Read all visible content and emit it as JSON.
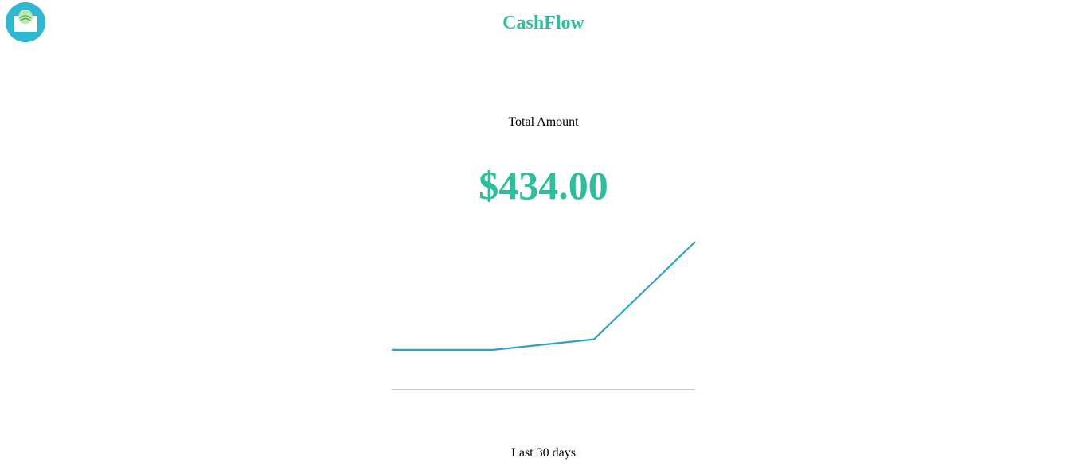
{
  "app": {
    "name": "CashFlow",
    "brand_color": "#2bbf9c",
    "logo_icon": "money-envelope-icon"
  },
  "summary": {
    "label": "Total Amount",
    "amount": "$434.00",
    "period_label": "Last 30 days"
  },
  "chart_data": {
    "type": "line",
    "title": "",
    "xlabel": "",
    "ylabel": "",
    "line_color": "#2ea3c2",
    "axis_color": "#cccccc",
    "x": [
      0,
      1,
      2,
      3
    ],
    "ylim": [
      0,
      434
    ],
    "series": [
      {
        "values": [
          117,
          117,
          148,
          434
        ]
      }
    ]
  }
}
